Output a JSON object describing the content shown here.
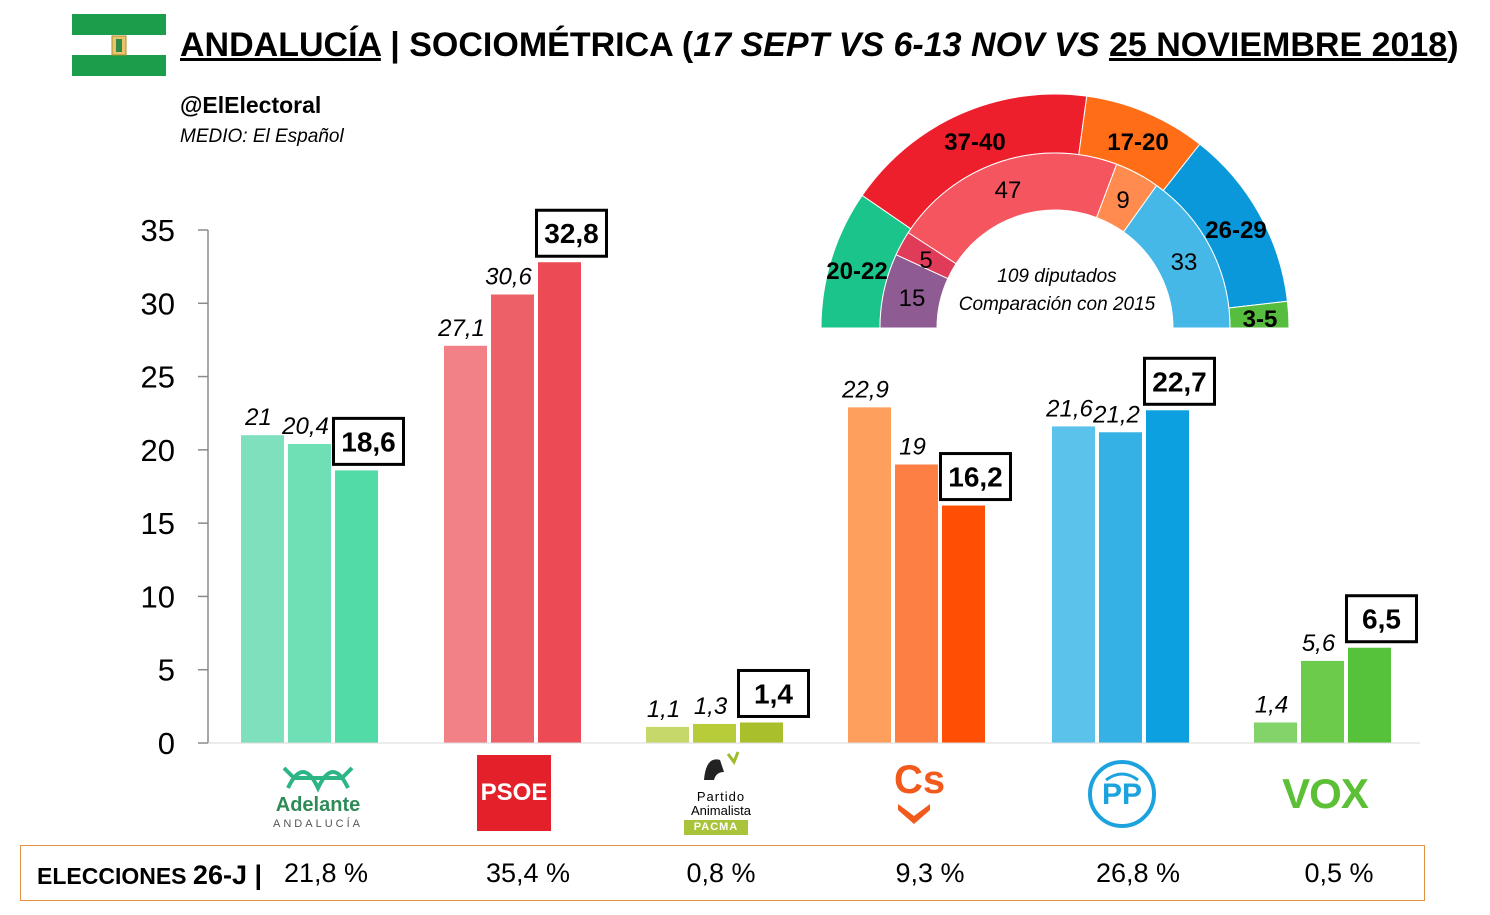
{
  "header": {
    "title_region": "ANDALUCÍA",
    "title_sep": " | ",
    "title_source": "SOCIOMÉTRICA (",
    "title_dates": "17 SEPT VS 6-13 NOV VS ",
    "title_final": "25 NOVIEMBRE 2018",
    "title_close": ")",
    "handle": "@ElElectoral",
    "medio": "MEDIO: El Español"
  },
  "colors": {
    "flag_green": "#1A9E4B",
    "adelante": [
      "#7FE0BE",
      "#6FE0B6",
      "#52DBA7"
    ],
    "psoe": [
      "#F28087",
      "#EE6068",
      "#EC4A55"
    ],
    "pacma": [
      "#C6D86A",
      "#B8CC3A",
      "#AABF2C"
    ],
    "cs": [
      "#FE9F5E",
      "#FE7F43",
      "#FE4F04"
    ],
    "pp": [
      "#5BC3EB",
      "#36B1E6",
      "#0CA0E0"
    ],
    "vox": [
      "#82D46A",
      "#6CCB4A",
      "#55C23A"
    ]
  },
  "chart_data": [
    {
      "type": "bar",
      "categories": [
        "Adelante Andalucía",
        "PSOE",
        "PACMA",
        "Cs",
        "PP",
        "VOX"
      ],
      "series": [
        {
          "values": [
            21,
            27.1,
            1.1,
            22.9,
            21.6,
            1.4
          ],
          "labels": [
            "21",
            "27,1",
            "1,1",
            "22,9",
            "21,6",
            "1,4"
          ]
        },
        {
          "values": [
            20.4,
            30.6,
            1.3,
            19,
            21.2,
            5.6
          ],
          "labels": [
            "20,4",
            "30,6",
            "1,3",
            "19",
            "21,2",
            "5,6"
          ]
        },
        {
          "values": [
            18.6,
            32.8,
            1.4,
            16.2,
            22.7,
            6.5
          ],
          "labels": [
            "18,6",
            "32,8",
            "1,4",
            "16,2",
            "22,7",
            "6,5"
          ]
        }
      ],
      "ylim": [
        0,
        35
      ],
      "yticks": [
        "0",
        "5",
        "10",
        "15",
        "20",
        "25",
        "30",
        "35"
      ]
    },
    {
      "type": "pie",
      "outer_ring": {
        "labels": [
          "20-22",
          "37-40",
          "17-20",
          "26-29",
          "3-5"
        ],
        "colors": [
          "#1BC48A",
          "#EE1F2C",
          "#FF6E17",
          "#0A98DB",
          "#57BD3E"
        ],
        "seats_mid": [
          21,
          38.5,
          18.5,
          27.5,
          4
        ]
      },
      "inner_ring": {
        "labels": [
          "15",
          "5",
          "47",
          "9",
          "33"
        ],
        "values": [
          15,
          5,
          47,
          9,
          33
        ],
        "colors": [
          "#8E5B93",
          "#E03C5A",
          "#F5555F",
          "#FF8B4F",
          "#45B8E8"
        ]
      },
      "center_text": [
        "109 diputados",
        "Comparación con 2015"
      ]
    }
  ],
  "logos": {
    "adelante_name": "Adelante",
    "adelante_sub": "ANDALUCÍA",
    "psoe": "PSOE",
    "pacma_line1": "Partido",
    "pacma_line2": "Animalista",
    "pacma_box": "PACMA",
    "cs": "Cs",
    "pp": "PP",
    "vox": "VOX"
  },
  "elections": {
    "label_main": "ELECCIONES ",
    "label_big": "26-J",
    "label_bar": " |",
    "values": [
      "21,8 %",
      "35,4 %",
      "0,8 %",
      "9,3 %",
      "26,8 %",
      "0,5 %"
    ]
  }
}
